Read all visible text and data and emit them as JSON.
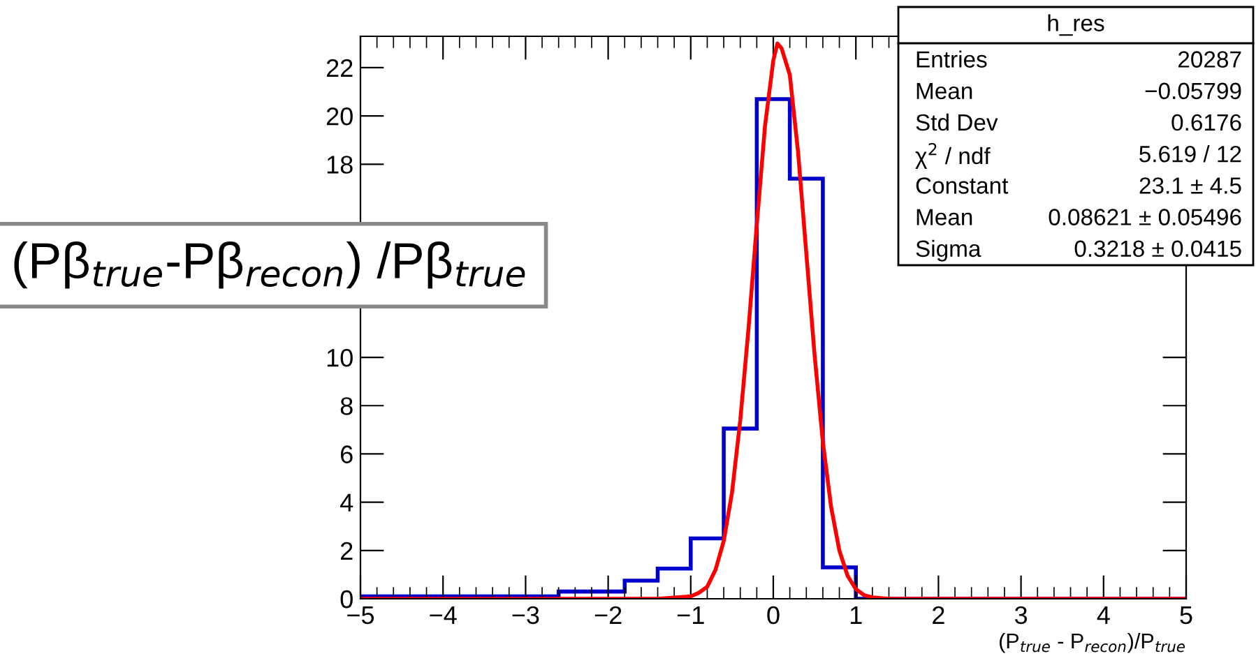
{
  "chart_data": {
    "type": "histogram",
    "xlabel": "(P$_{true}$ - P$_{recon}$)/P$_{true}$",
    "bins": [
      -5,
      -4.6,
      -4.2,
      -3.8,
      -3.4,
      -3.0,
      -2.6,
      -2.2,
      -1.8,
      -1.4,
      -1.0,
      -0.6,
      -0.2,
      0.2,
      0.6,
      1.0,
      1.4,
      1.8,
      2.2,
      2.6,
      3.0,
      3.4,
      3.8,
      4.2,
      4.6,
      5.0
    ],
    "values": [
      0.1,
      0.1,
      0.1,
      0.1,
      0.1,
      0.1,
      0.3,
      0.3,
      0.75,
      1.25,
      2.5,
      7.05,
      20.7,
      17.4,
      1.3,
      0,
      0,
      0,
      0,
      0,
      0,
      0,
      0,
      0,
      0
    ],
    "color": "#0000cc",
    "series": [
      {
        "type": "line",
        "color": "#ff0000",
        "x": [
          -5,
          -1.4,
          -1.2,
          -1.0,
          -0.9,
          -0.8,
          -0.7,
          -0.6,
          -0.5,
          -0.4,
          -0.3,
          -0.2,
          -0.1,
          0.0,
          0.05,
          0.1,
          0.2,
          0.3,
          0.4,
          0.5,
          0.6,
          0.7,
          0.8,
          0.9,
          1.0,
          1.1,
          1.2,
          1.4,
          5
        ],
        "values": [
          0,
          0,
          0.05,
          0.1,
          0.25,
          0.5,
          1.2,
          2.4,
          4.4,
          7.4,
          11.2,
          15.5,
          19.6,
          22.3,
          23.0,
          22.8,
          21.7,
          18.5,
          14.3,
          10.1,
          6.5,
          3.8,
          2.0,
          0.95,
          0.4,
          0.15,
          0.06,
          0,
          0
        ]
      }
    ],
    "xlim": [
      -5,
      5
    ],
    "xticks": [
      -5,
      -4,
      -3,
      -2,
      -1,
      0,
      1,
      2,
      3,
      4,
      5
    ],
    "ylim": [
      0,
      23.3
    ],
    "yticks": [
      0,
      2,
      4,
      6,
      8,
      10,
      18,
      20,
      22
    ],
    "grid": false,
    "legend": false,
    "annotations": [
      "(Pβ$_{true}$-Pβ$_{recon}$) /Pβ$_{true}$",
      "h_res",
      "Entries",
      "20287",
      "Mean",
      "−0.05799",
      "Std Dev",
      "0.6176",
      "χ$^{2}$ / ndf",
      "5.619 / 12",
      "Constant",
      "23.1 ± 4.5",
      "Mean",
      "0.08621 ± 0.05496",
      "Sigma",
      "0.3218 ± 0.0415"
    ]
  }
}
